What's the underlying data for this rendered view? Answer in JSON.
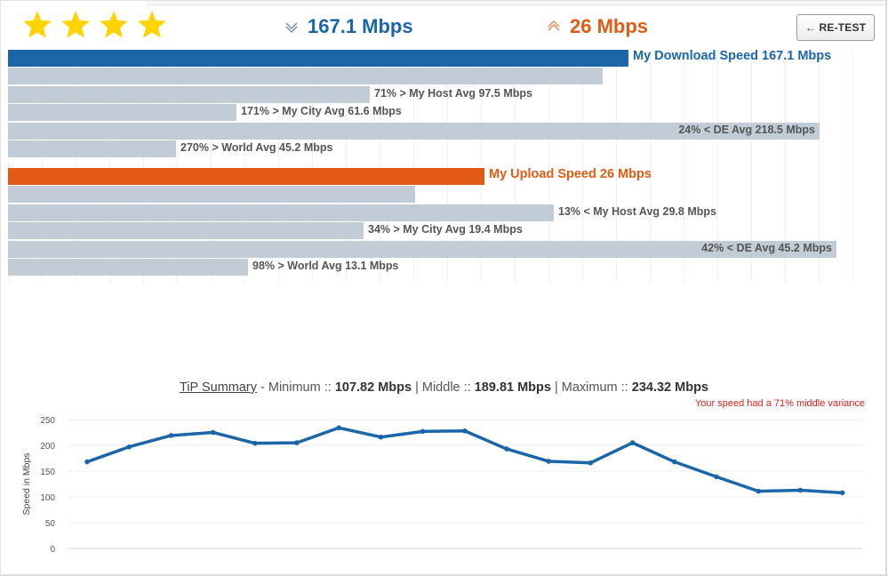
{
  "rating": {
    "stars": 4,
    "max_stars": 4
  },
  "header": {
    "download_value": "167.1 Mbps",
    "upload_value": "26 Mbps",
    "retest_label": "← RE-TEST",
    "download_icon": "download-arrow-icon",
    "upload_icon": "upload-arrow-icon"
  },
  "colors": {
    "download": "#1a66a8",
    "upload": "#e35a14",
    "bar_gray": "#c1ccd6",
    "star": "#ffd400",
    "line": "#1a66a8",
    "variance": "#e0201a"
  },
  "download_bars": [
    {
      "label": "My Download Speed 167.1 Mbps",
      "value": 167.1,
      "primary": true
    },
    {
      "label": "",
      "value": 160.0,
      "primary": false
    },
    {
      "label": "71% > My Host Avg 97.5 Mbps",
      "value": 97.5,
      "primary": false
    },
    {
      "label": "171% > My City Avg 61.6 Mbps",
      "value": 61.6,
      "primary": false
    },
    {
      "label": "24% < DE Avg 218.5 Mbps",
      "value": 218.5,
      "primary": false
    },
    {
      "label": "270% > World Avg 45.2 Mbps",
      "value": 45.2,
      "primary": false
    }
  ],
  "upload_bars": [
    {
      "label": "My Upload Speed 26 Mbps",
      "value": 26,
      "primary": true
    },
    {
      "label": "",
      "value": 22.2,
      "primary": false
    },
    {
      "label": "13% < My Host Avg 29.8 Mbps",
      "value": 29.8,
      "primary": false
    },
    {
      "label": "34% > My City Avg 19.4 Mbps",
      "value": 19.4,
      "primary": false
    },
    {
      "label": "42% < DE Avg 45.2 Mbps",
      "value": 45.2,
      "primary": false
    },
    {
      "label": "98% > World Avg 13.1 Mbps",
      "value": 13.1,
      "primary": false
    }
  ],
  "summary": {
    "tip_label": "TiP Summary",
    "minimum_label": " - Minimum :: ",
    "minimum_value": "107.82 Mbps",
    "middle_label": " | Middle :: ",
    "middle_value": "189.81 Mbps",
    "maximum_label": " | Maximum :: ",
    "maximum_value": "234.32 Mbps",
    "variance_note": "Your speed had a 71% middle variance"
  },
  "chart_data": {
    "type": "line",
    "title": "",
    "xlabel": "",
    "ylabel": "Speed in Mbps",
    "ylim": [
      0,
      250
    ],
    "yticks": [
      0,
      50,
      100,
      150,
      200,
      250
    ],
    "grid": true,
    "series": [
      {
        "name": "",
        "values": [
          168,
          197,
          219,
          225,
          204,
          205,
          234,
          216,
          227,
          228,
          193,
          169,
          166,
          205,
          168,
          139,
          111,
          113,
          108
        ]
      }
    ]
  }
}
